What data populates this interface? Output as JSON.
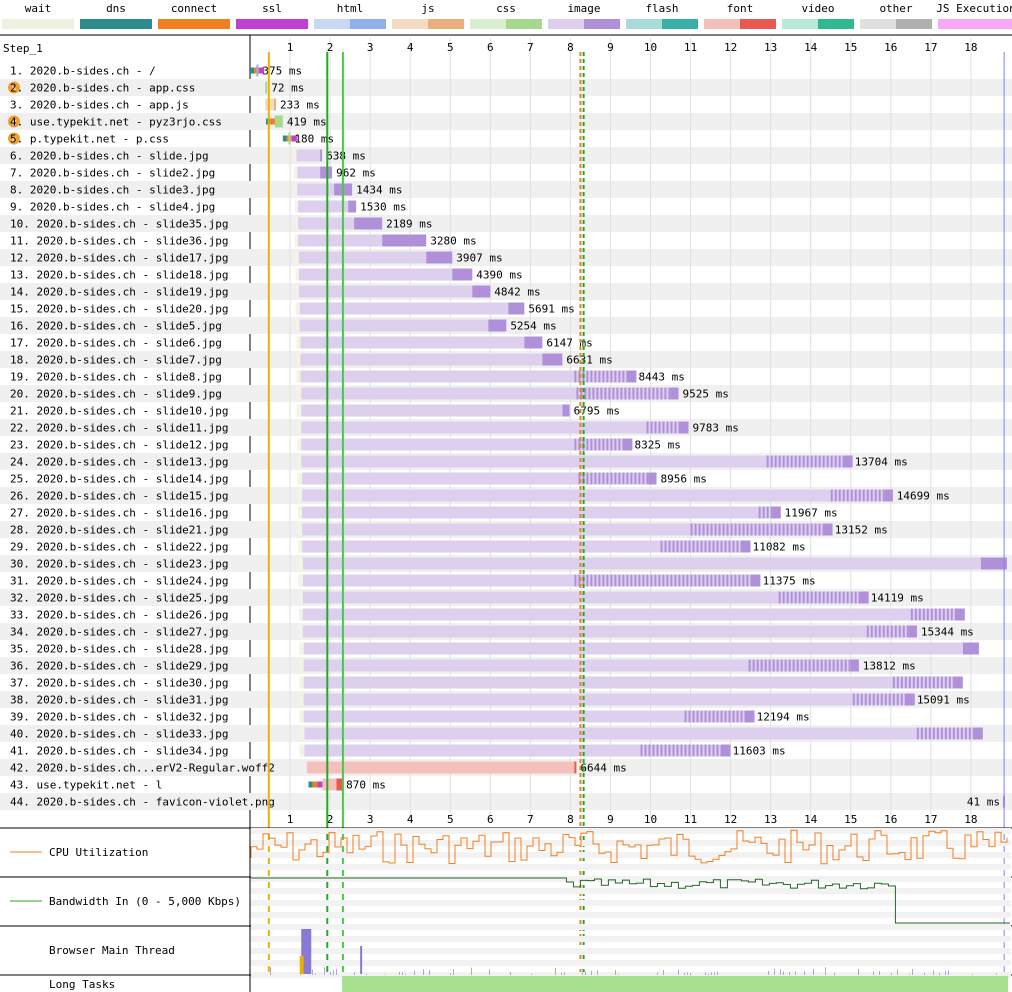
{
  "legend": [
    {
      "label": "wait",
      "a": "#f0f0e0",
      "b": "#f0f0e0"
    },
    {
      "label": "dns",
      "a": "#2e8b8b",
      "b": "#2e8b8b"
    },
    {
      "label": "connect",
      "a": "#f07f20",
      "b": "#f07f20"
    },
    {
      "label": "ssl",
      "a": "#c040d0",
      "b": "#c040d0"
    },
    {
      "label": "html",
      "a": "#c8d8f4",
      "b": "#8eb1ec"
    },
    {
      "label": "js",
      "a": "#f4dcc4",
      "b": "#eab07c"
    },
    {
      "label": "css",
      "a": "#d8f0d0",
      "b": "#a8d890"
    },
    {
      "label": "image",
      "a": "#ddd0ee",
      "b": "#b090d8"
    },
    {
      "label": "flash",
      "a": "#a8dcd8",
      "b": "#38b0a8"
    },
    {
      "label": "font",
      "a": "#f4c0bc",
      "b": "#e85a50"
    },
    {
      "label": "video",
      "a": "#b8e8d8",
      "b": "#30b890"
    },
    {
      "label": "other",
      "a": "#e0e0e0",
      "b": "#b0b0b0"
    },
    {
      "label": "JS Execution",
      "a": "#f8a8f8",
      "b": "#f8a8f8"
    }
  ],
  "chart_data": {
    "type": "waterfall",
    "step": "Step_1",
    "x_unit": "seconds",
    "x_ticks": [
      1,
      2,
      3,
      4,
      5,
      6,
      7,
      8,
      9,
      10,
      11,
      12,
      13,
      14,
      15,
      16,
      17,
      18
    ],
    "xlim": [
      0,
      18.8
    ],
    "markers": [
      {
        "name": "start render",
        "t": 0.47,
        "color": "#f0b000"
      },
      {
        "name": "dom interactive",
        "t": 1.93,
        "color": "#22aa22"
      },
      {
        "name": "dom content loaded",
        "t": 2.32,
        "color": "#44cc44"
      },
      {
        "name": "load event start",
        "t": 8.25,
        "color": "#f07f20"
      },
      {
        "name": "document complete",
        "t": 8.33,
        "color": "#22aa22"
      },
      {
        "name": "on load",
        "t": 18.83,
        "color": "#8080ff"
      }
    ],
    "requests": [
      {
        "label": "1. 2020.b-sides.ch - /",
        "type": "html",
        "start": 0.0,
        "wait": 0.0,
        "ttfb": 0.16,
        "dl": 0.07,
        "ms": "375 ms",
        "err": false,
        "conn": true
      },
      {
        "label": "2. 2020.b-sides.ch - app.css",
        "type": "css",
        "start": 0.38,
        "wait": 0.38,
        "ttfb": 0.38,
        "dl": 0.07,
        "ms": "72 ms",
        "err": true
      },
      {
        "label": "3. 2020.b-sides.ch - app.js",
        "type": "js",
        "start": 0.38,
        "wait": 0.38,
        "ttfb": 0.6,
        "dl": 0.62,
        "ms": "233 ms",
        "err": false
      },
      {
        "label": "4. use.typekit.net - pyz3rjo.css",
        "type": "css",
        "start": 0.4,
        "wait": 0.4,
        "ttfb": 0.62,
        "dl": 0.82,
        "ms": "419 ms",
        "err": true,
        "conn": true
      },
      {
        "label": "5. p.typekit.net - p.css",
        "type": "css",
        "start": 0.82,
        "wait": 0.82,
        "ttfb": 0.96,
        "dl": 1.0,
        "ms": "180 ms",
        "err": true,
        "conn": true
      },
      {
        "label": "6. 2020.b-sides.ch - slide.jpg",
        "type": "image",
        "start": 1.08,
        "wait": 1.16,
        "ttfb": 1.75,
        "dl": 1.75,
        "ms": "638 ms"
      },
      {
        "label": "7. 2020.b-sides.ch - slide2.jpg",
        "type": "image",
        "start": 1.1,
        "wait": 1.18,
        "ttfb": 1.75,
        "dl": 2.05,
        "ms": "962 ms"
      },
      {
        "label": "8. 2020.b-sides.ch - slide3.jpg",
        "type": "image",
        "start": 1.1,
        "wait": 1.18,
        "ttfb": 2.1,
        "dl": 2.55,
        "ms": "1434 ms"
      },
      {
        "label": "9. 2020.b-sides.ch - slide4.jpg",
        "type": "image",
        "start": 1.12,
        "wait": 1.2,
        "ttfb": 2.45,
        "dl": 2.65,
        "ms": "1530 ms"
      },
      {
        "label": "10. 2020.b-sides.ch - slide35.jpg",
        "type": "image",
        "start": 1.12,
        "wait": 1.2,
        "ttfb": 2.6,
        "dl": 3.3,
        "ms": "2189 ms"
      },
      {
        "label": "11. 2020.b-sides.ch - slide36.jpg",
        "type": "image",
        "start": 1.12,
        "wait": 1.2,
        "ttfb": 3.3,
        "dl": 4.4,
        "ms": "3280 ms"
      },
      {
        "label": "12. 2020.b-sides.ch - slide17.jpg",
        "type": "image",
        "start": 1.12,
        "wait": 1.22,
        "ttfb": 4.4,
        "dl": 5.05,
        "ms": "3907 ms"
      },
      {
        "label": "13. 2020.b-sides.ch - slide18.jpg",
        "type": "image",
        "start": 1.14,
        "wait": 1.22,
        "ttfb": 5.05,
        "dl": 5.55,
        "ms": "4390 ms"
      },
      {
        "label": "14. 2020.b-sides.ch - slide19.jpg",
        "type": "image",
        "start": 1.14,
        "wait": 1.22,
        "ttfb": 5.55,
        "dl": 6.0,
        "ms": "4842 ms"
      },
      {
        "label": "15. 2020.b-sides.ch - slide20.jpg",
        "type": "image",
        "start": 1.14,
        "wait": 1.24,
        "ttfb": 6.45,
        "dl": 6.85,
        "ms": "5691 ms"
      },
      {
        "label": "16. 2020.b-sides.ch - slide5.jpg",
        "type": "image",
        "start": 1.14,
        "wait": 1.24,
        "ttfb": 5.95,
        "dl": 6.4,
        "ms": "5254 ms"
      },
      {
        "label": "17. 2020.b-sides.ch - slide6.jpg",
        "type": "image",
        "start": 1.16,
        "wait": 1.26,
        "ttfb": 6.85,
        "dl": 7.3,
        "ms": "6147 ms"
      },
      {
        "label": "18. 2020.b-sides.ch - slide7.jpg",
        "type": "image",
        "start": 1.16,
        "wait": 1.26,
        "ttfb": 7.3,
        "dl": 7.8,
        "ms": "6631 ms"
      },
      {
        "label": "19. 2020.b-sides.ch - slide8.jpg",
        "type": "image",
        "start": 1.16,
        "wait": 1.26,
        "ttfb": 8.1,
        "dl": 9.6,
        "ms": "8443 ms",
        "striped": true
      },
      {
        "label": "20. 2020.b-sides.ch - slide9.jpg",
        "type": "image",
        "start": 1.16,
        "wait": 1.28,
        "ttfb": 8.15,
        "dl": 10.7,
        "ms": "9525 ms",
        "striped": true
      },
      {
        "label": "21. 2020.b-sides.ch - slide10.jpg",
        "type": "image",
        "start": 1.16,
        "wait": 1.28,
        "ttfb": 7.8,
        "dl": 7.98,
        "ms": "6795 ms"
      },
      {
        "label": "22. 2020.b-sides.ch - slide11.jpg",
        "type": "image",
        "start": 1.18,
        "wait": 1.28,
        "ttfb": 9.9,
        "dl": 10.95,
        "ms": "9783 ms",
        "striped": true
      },
      {
        "label": "23. 2020.b-sides.ch - slide12.jpg",
        "type": "image",
        "start": 1.18,
        "wait": 1.28,
        "ttfb": 8.1,
        "dl": 9.5,
        "ms": "8325 ms",
        "striped": true
      },
      {
        "label": "24. 2020.b-sides.ch - slide13.jpg",
        "type": "image",
        "start": 1.18,
        "wait": 1.28,
        "ttfb": 12.9,
        "dl": 15.0,
        "ms": "13704 ms",
        "striped": true
      },
      {
        "label": "25. 2020.b-sides.ch - slide14.jpg",
        "type": "image",
        "start": 1.18,
        "wait": 1.3,
        "ttfb": 8.2,
        "dl": 10.15,
        "ms": "8956 ms",
        "striped": true
      },
      {
        "label": "26. 2020.b-sides.ch - slide15.jpg",
        "type": "image",
        "start": 1.18,
        "wait": 1.3,
        "ttfb": 14.5,
        "dl": 16.05,
        "ms": "14699 ms",
        "striped": true
      },
      {
        "label": "27. 2020.b-sides.ch - slide16.jpg",
        "type": "image",
        "start": 1.2,
        "wait": 1.3,
        "ttfb": 12.7,
        "dl": 13.25,
        "ms": "11967 ms",
        "striped": true
      },
      {
        "label": "28. 2020.b-sides.ch - slide21.jpg",
        "type": "image",
        "start": 1.2,
        "wait": 1.3,
        "ttfb": 11.0,
        "dl": 14.5,
        "ms": "13152 ms",
        "striped": true
      },
      {
        "label": "29. 2020.b-sides.ch - slide22.jpg",
        "type": "image",
        "start": 1.2,
        "wait": 1.3,
        "ttfb": 10.25,
        "dl": 12.45,
        "ms": "11082 ms",
        "striped": true
      },
      {
        "label": "30. 2020.b-sides.ch - slide23.jpg",
        "type": "image",
        "start": 1.2,
        "wait": 1.32,
        "ttfb": 18.25,
        "dl": 18.9,
        "ms": "",
        "striped": false
      },
      {
        "label": "31. 2020.b-sides.ch - slide24.jpg",
        "type": "image",
        "start": 1.2,
        "wait": 1.32,
        "ttfb": 8.1,
        "dl": 12.7,
        "ms": "11375 ms",
        "striped": true
      },
      {
        "label": "32. 2020.b-sides.ch - slide25.jpg",
        "type": "image",
        "start": 1.22,
        "wait": 1.32,
        "ttfb": 13.2,
        "dl": 15.4,
        "ms": "14119 ms",
        "striped": true
      },
      {
        "label": "33. 2020.b-sides.ch - slide26.jpg",
        "type": "image",
        "start": 1.22,
        "wait": 1.32,
        "ttfb": 16.5,
        "dl": 17.8,
        "ms": "",
        "striped": true
      },
      {
        "label": "34. 2020.b-sides.ch - slide27.jpg",
        "type": "image",
        "start": 1.22,
        "wait": 1.32,
        "ttfb": 15.4,
        "dl": 16.65,
        "ms": "15344 ms",
        "striped": true
      },
      {
        "label": "35. 2020.b-sides.ch - slide28.jpg",
        "type": "image",
        "start": 1.22,
        "wait": 1.34,
        "ttfb": 17.8,
        "dl": 18.2,
        "ms": "",
        "striped": false
      },
      {
        "label": "36. 2020.b-sides.ch - slide29.jpg",
        "type": "image",
        "start": 1.22,
        "wait": 1.34,
        "ttfb": 12.45,
        "dl": 15.2,
        "ms": "13812 ms",
        "striped": true
      },
      {
        "label": "37. 2020.b-sides.ch - slide30.jpg",
        "type": "image",
        "start": 1.24,
        "wait": 1.34,
        "ttfb": 16.05,
        "dl": 17.75,
        "ms": "",
        "striped": true
      },
      {
        "label": "38. 2020.b-sides.ch - slide31.jpg",
        "type": "image",
        "start": 1.24,
        "wait": 1.34,
        "ttfb": 15.05,
        "dl": 16.55,
        "ms": "15091 ms",
        "striped": true
      },
      {
        "label": "39. 2020.b-sides.ch - slide32.jpg",
        "type": "image",
        "start": 1.24,
        "wait": 1.34,
        "ttfb": 10.85,
        "dl": 12.55,
        "ms": "12194 ms",
        "striped": true
      },
      {
        "label": "40. 2020.b-sides.ch - slide33.jpg",
        "type": "image",
        "start": 1.24,
        "wait": 1.36,
        "ttfb": 16.65,
        "dl": 18.25,
        "ms": "",
        "striped": true
      },
      {
        "label": "41. 2020.b-sides.ch - slide34.jpg",
        "type": "image",
        "start": 1.24,
        "wait": 1.36,
        "ttfb": 9.75,
        "dl": 11.95,
        "ms": "11603 ms",
        "striped": true
      },
      {
        "label": "42. 2020.b-sides.ch...erV2-Regular.woff2",
        "type": "font",
        "start": 1.42,
        "wait": 1.42,
        "ttfb": 8.1,
        "dl": 8.15,
        "ms": "6644 ms"
      },
      {
        "label": "43. use.typekit.net - l",
        "type": "font",
        "start": 1.46,
        "wait": 1.46,
        "ttfb": 2.16,
        "dl": 2.3,
        "ms": "870 ms",
        "conn": true
      },
      {
        "label": "44. 2020.b-sides.ch - favicon-violet.png",
        "type": "image",
        "start": 18.8,
        "wait": 18.8,
        "ttfb": 18.8,
        "dl": 18.82,
        "ms": "41 ms"
      }
    ]
  },
  "panels": {
    "cpu_label": "CPU Utilization",
    "bw_label": "Bandwidth In (0 - 5,000 Kbps)",
    "main_label": "Browser Main Thread",
    "long_label": "Long Tasks"
  }
}
